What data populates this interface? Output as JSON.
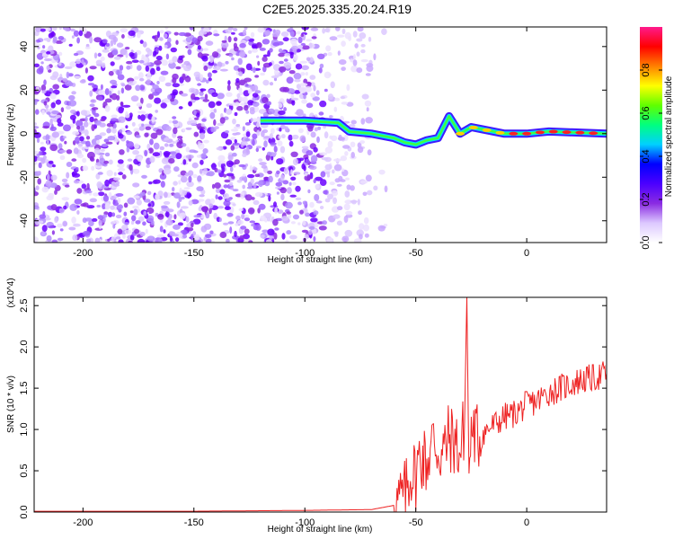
{
  "title": "C2E5.2025.335.20.24.R19",
  "chart_data": [
    {
      "type": "heatmap",
      "xlabel": "Height of straight line (km)",
      "ylabel": "Frequency (Hz)",
      "xlim": [
        -222,
        36
      ],
      "ylim": [
        -50,
        49
      ],
      "xticks": [
        -200,
        -150,
        -100,
        -50,
        0
      ],
      "yticks": [
        -40,
        -20,
        0,
        20,
        40
      ],
      "colorbar": {
        "label": "Normalized spectral amplitude",
        "range": [
          0,
          1
        ],
        "ticks": [
          "0.0",
          "0.2",
          "0.4",
          "0.6",
          "0.8"
        ],
        "tick_values": [
          0,
          0.2,
          0.4,
          0.6,
          0.8
        ],
        "colors": [
          "#ffffff",
          "#dcc8ff",
          "#8a2be2",
          "#4b00ff",
          "#0000ff",
          "#00d0ff",
          "#00ff80",
          "#60ff00",
          "#ffff00",
          "#ff8000",
          "#ff0000",
          "#ff1a8c"
        ]
      },
      "ridge": [
        {
          "x": -120,
          "f": 6
        },
        {
          "x": -100,
          "f": 6
        },
        {
          "x": -85,
          "f": 5
        },
        {
          "x": -80,
          "f": 1
        },
        {
          "x": -70,
          "f": 0
        },
        {
          "x": -60,
          "f": -2
        },
        {
          "x": -55,
          "f": -4
        },
        {
          "x": -50,
          "f": -5
        },
        {
          "x": -45,
          "f": -3
        },
        {
          "x": -40,
          "f": -2
        },
        {
          "x": -35,
          "f": 8
        },
        {
          "x": -30,
          "f": 0
        },
        {
          "x": -25,
          "f": 3
        },
        {
          "x": -20,
          "f": 2
        },
        {
          "x": -10,
          "f": 0
        },
        {
          "x": 0,
          "f": 0
        },
        {
          "x": 10,
          "f": 1
        },
        {
          "x": 36,
          "f": 0
        }
      ]
    },
    {
      "type": "line",
      "xlabel": "Height of straight line (km)",
      "ylabel": "SNR (10 * v/v)",
      "y_multiplier": "(x10^4)",
      "xlim": [
        -222,
        36
      ],
      "ylim": [
        0,
        2.6
      ],
      "xticks": [
        -200,
        -150,
        -100,
        -50,
        0
      ],
      "yticks": [
        "0.0",
        "0.5",
        "1.0",
        "1.5",
        "2.0",
        "2.5"
      ],
      "ytick_values": [
        0,
        0.5,
        1.0,
        1.5,
        2.0,
        2.5
      ],
      "line_color": "#ee2222",
      "x": [
        -222,
        -150,
        -100,
        -70,
        -60,
        -55,
        -52,
        -50,
        -48,
        -45,
        -42,
        -40,
        -38,
        -35,
        -32,
        -30,
        -28,
        -27,
        -26,
        -25,
        -22,
        -20,
        -15,
        -10,
        -5,
        0,
        5,
        10,
        15,
        20,
        25,
        30,
        36
      ],
      "values": [
        0.01,
        0.01,
        0.02,
        0.03,
        0.08,
        0.2,
        0.5,
        0.45,
        0.7,
        0.6,
        0.9,
        0.75,
        0.7,
        0.9,
        0.85,
        0.7,
        1.1,
        2.6,
        0.4,
        1.0,
        0.9,
        0.95,
        1.05,
        1.15,
        1.2,
        1.3,
        1.35,
        1.45,
        1.5,
        1.55,
        1.6,
        1.62,
        1.68
      ]
    }
  ]
}
